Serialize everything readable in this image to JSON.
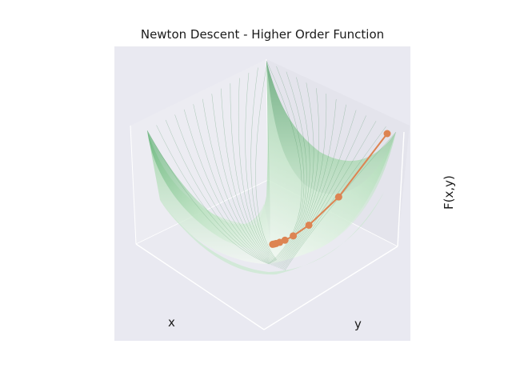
{
  "chart_data": {
    "type": "surface3d",
    "title": "Newton Descent - Higher Order Function",
    "xlabel": "x",
    "ylabel": "y",
    "zlabel": "F(x,y)",
    "surface": {
      "function": "x^4 + y^4 (higher order bowl)",
      "colormap": "Greens",
      "alpha": 0.5
    },
    "path": {
      "color": "#dd8452",
      "points_screen_order": [
        {
          "step": 0,
          "value_rank": 1.0
        },
        {
          "step": 1,
          "value_rank": 0.31
        },
        {
          "step": 2,
          "value_rank": 0.09
        },
        {
          "step": 3,
          "value_rank": 0.03
        },
        {
          "step": 4,
          "value_rank": 0.012
        },
        {
          "step": 5,
          "value_rank": 0.005
        },
        {
          "step": 6,
          "value_rank": 0.002
        },
        {
          "step": 7,
          "value_rank": 0.001
        },
        {
          "step": 8,
          "value_rank": 0.0005
        }
      ]
    },
    "grid": true
  }
}
